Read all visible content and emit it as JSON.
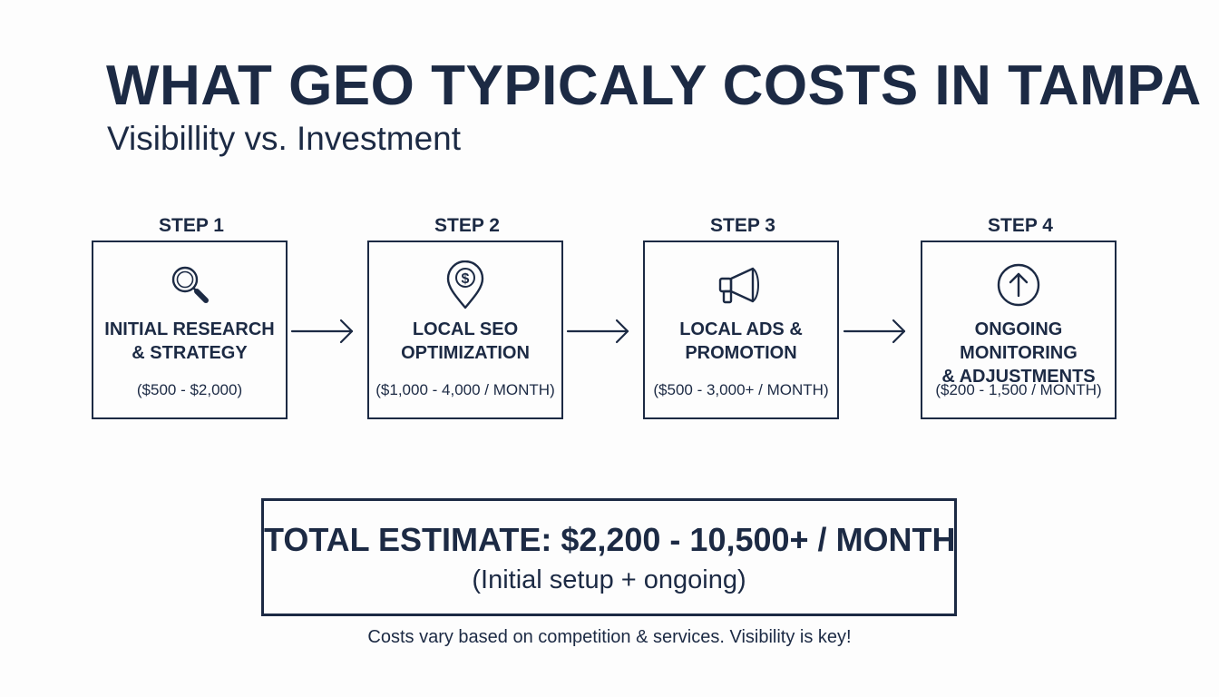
{
  "header": {
    "title": "WHAT GEO TYPICALY COSTS IN TAMPA",
    "subtitle": "Visibillity vs. Investment"
  },
  "steps": [
    {
      "label": "STEP 1",
      "name": "INITIAL RESEARCH\n& STRATEGY",
      "cost": "($500 - $2,000)",
      "icon": "magnifier-icon"
    },
    {
      "label": "STEP 2",
      "name": "LOCAL SEO\nOPTIMIZATION",
      "cost": "($1,000 - 4,000 / MONTH)",
      "icon": "dollar-location-pin-icon"
    },
    {
      "label": "STEP 3",
      "name": "LOCAL ADS &\nPROMOTION",
      "cost": "($500 - 3,000+ / MONTH)",
      "icon": "megaphone-icon"
    },
    {
      "label": "STEP 4",
      "name": "ONGOING MONITORING\n& ADJUSTMENTS",
      "cost": "($200 - 1,500 / MONTH)",
      "icon": "circle-up-arrow-icon"
    }
  ],
  "total": {
    "main": "TOTAL ESTIMATE: $2,200 - 10,500+ / MONTH",
    "sub": "(Initial setup + ongoing)"
  },
  "footer": {
    "note": "Costs vary based on competition & services. Visibility is key!"
  },
  "colors": {
    "ink": "#1c2a44",
    "background": "#fdfdfd"
  }
}
